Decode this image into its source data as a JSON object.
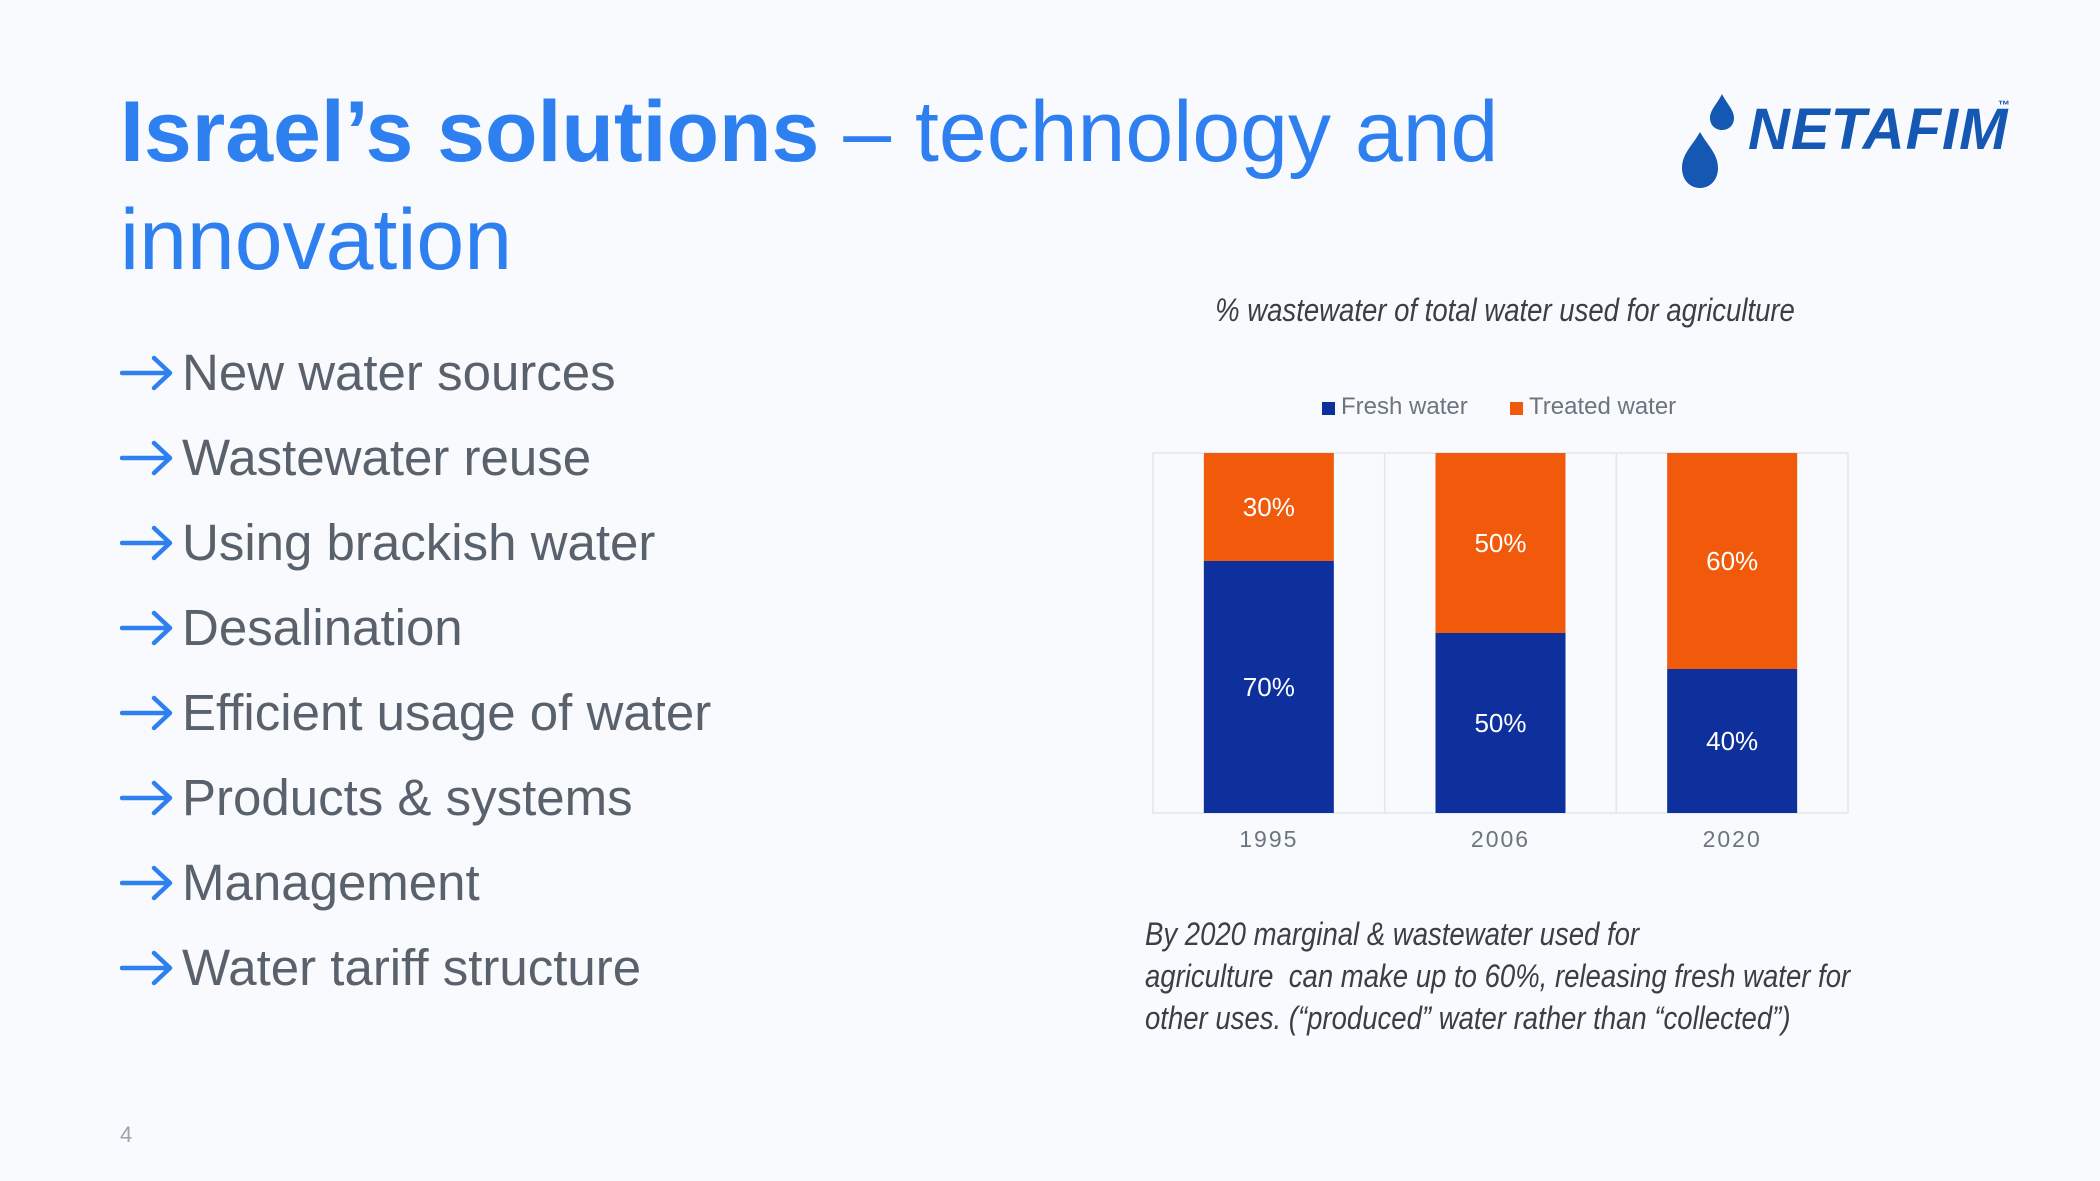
{
  "slide": {
    "title_bold": "Israel’s solutions",
    "title_rest": " – technology and innovation",
    "page_number": "4"
  },
  "logo": {
    "text": "NETAFIM",
    "tm": "™",
    "icon": "water-drop-icon",
    "color": "#1458b3"
  },
  "bullets": [
    "New water sources",
    "Wastewater reuse",
    "Using brackish water",
    "Desalination",
    "Efficient usage of water",
    "Products & systems",
    "Management",
    "Water tariff structure"
  ],
  "caption_lines": [
    "By 2020 marginal & wastewater used for",
    "agriculture  can make up to 60%, releasing fresh water for",
    "other uses. (“produced” water rather than “collected”)"
  ],
  "colors": {
    "title": "#2e7ff0",
    "arrow": "#2e7ff0",
    "fresh": "#0e309c",
    "treated": "#f05a0a"
  },
  "chart_data": {
    "type": "bar",
    "stacked": true,
    "title": "% wastewater of total water used for agriculture",
    "categories": [
      "1995",
      "2006",
      "2020"
    ],
    "series": [
      {
        "name": "Fresh water",
        "values": [
          70,
          50,
          40
        ],
        "labels": [
          "70%",
          "50%",
          "40%"
        ],
        "color": "#0e309c"
      },
      {
        "name": "Treated water",
        "values": [
          30,
          50,
          60
        ],
        "labels": [
          "30%",
          "50%",
          "60%"
        ],
        "color": "#f05a0a"
      }
    ],
    "ylim": [
      0,
      100
    ],
    "legend": "top",
    "grid": false
  }
}
